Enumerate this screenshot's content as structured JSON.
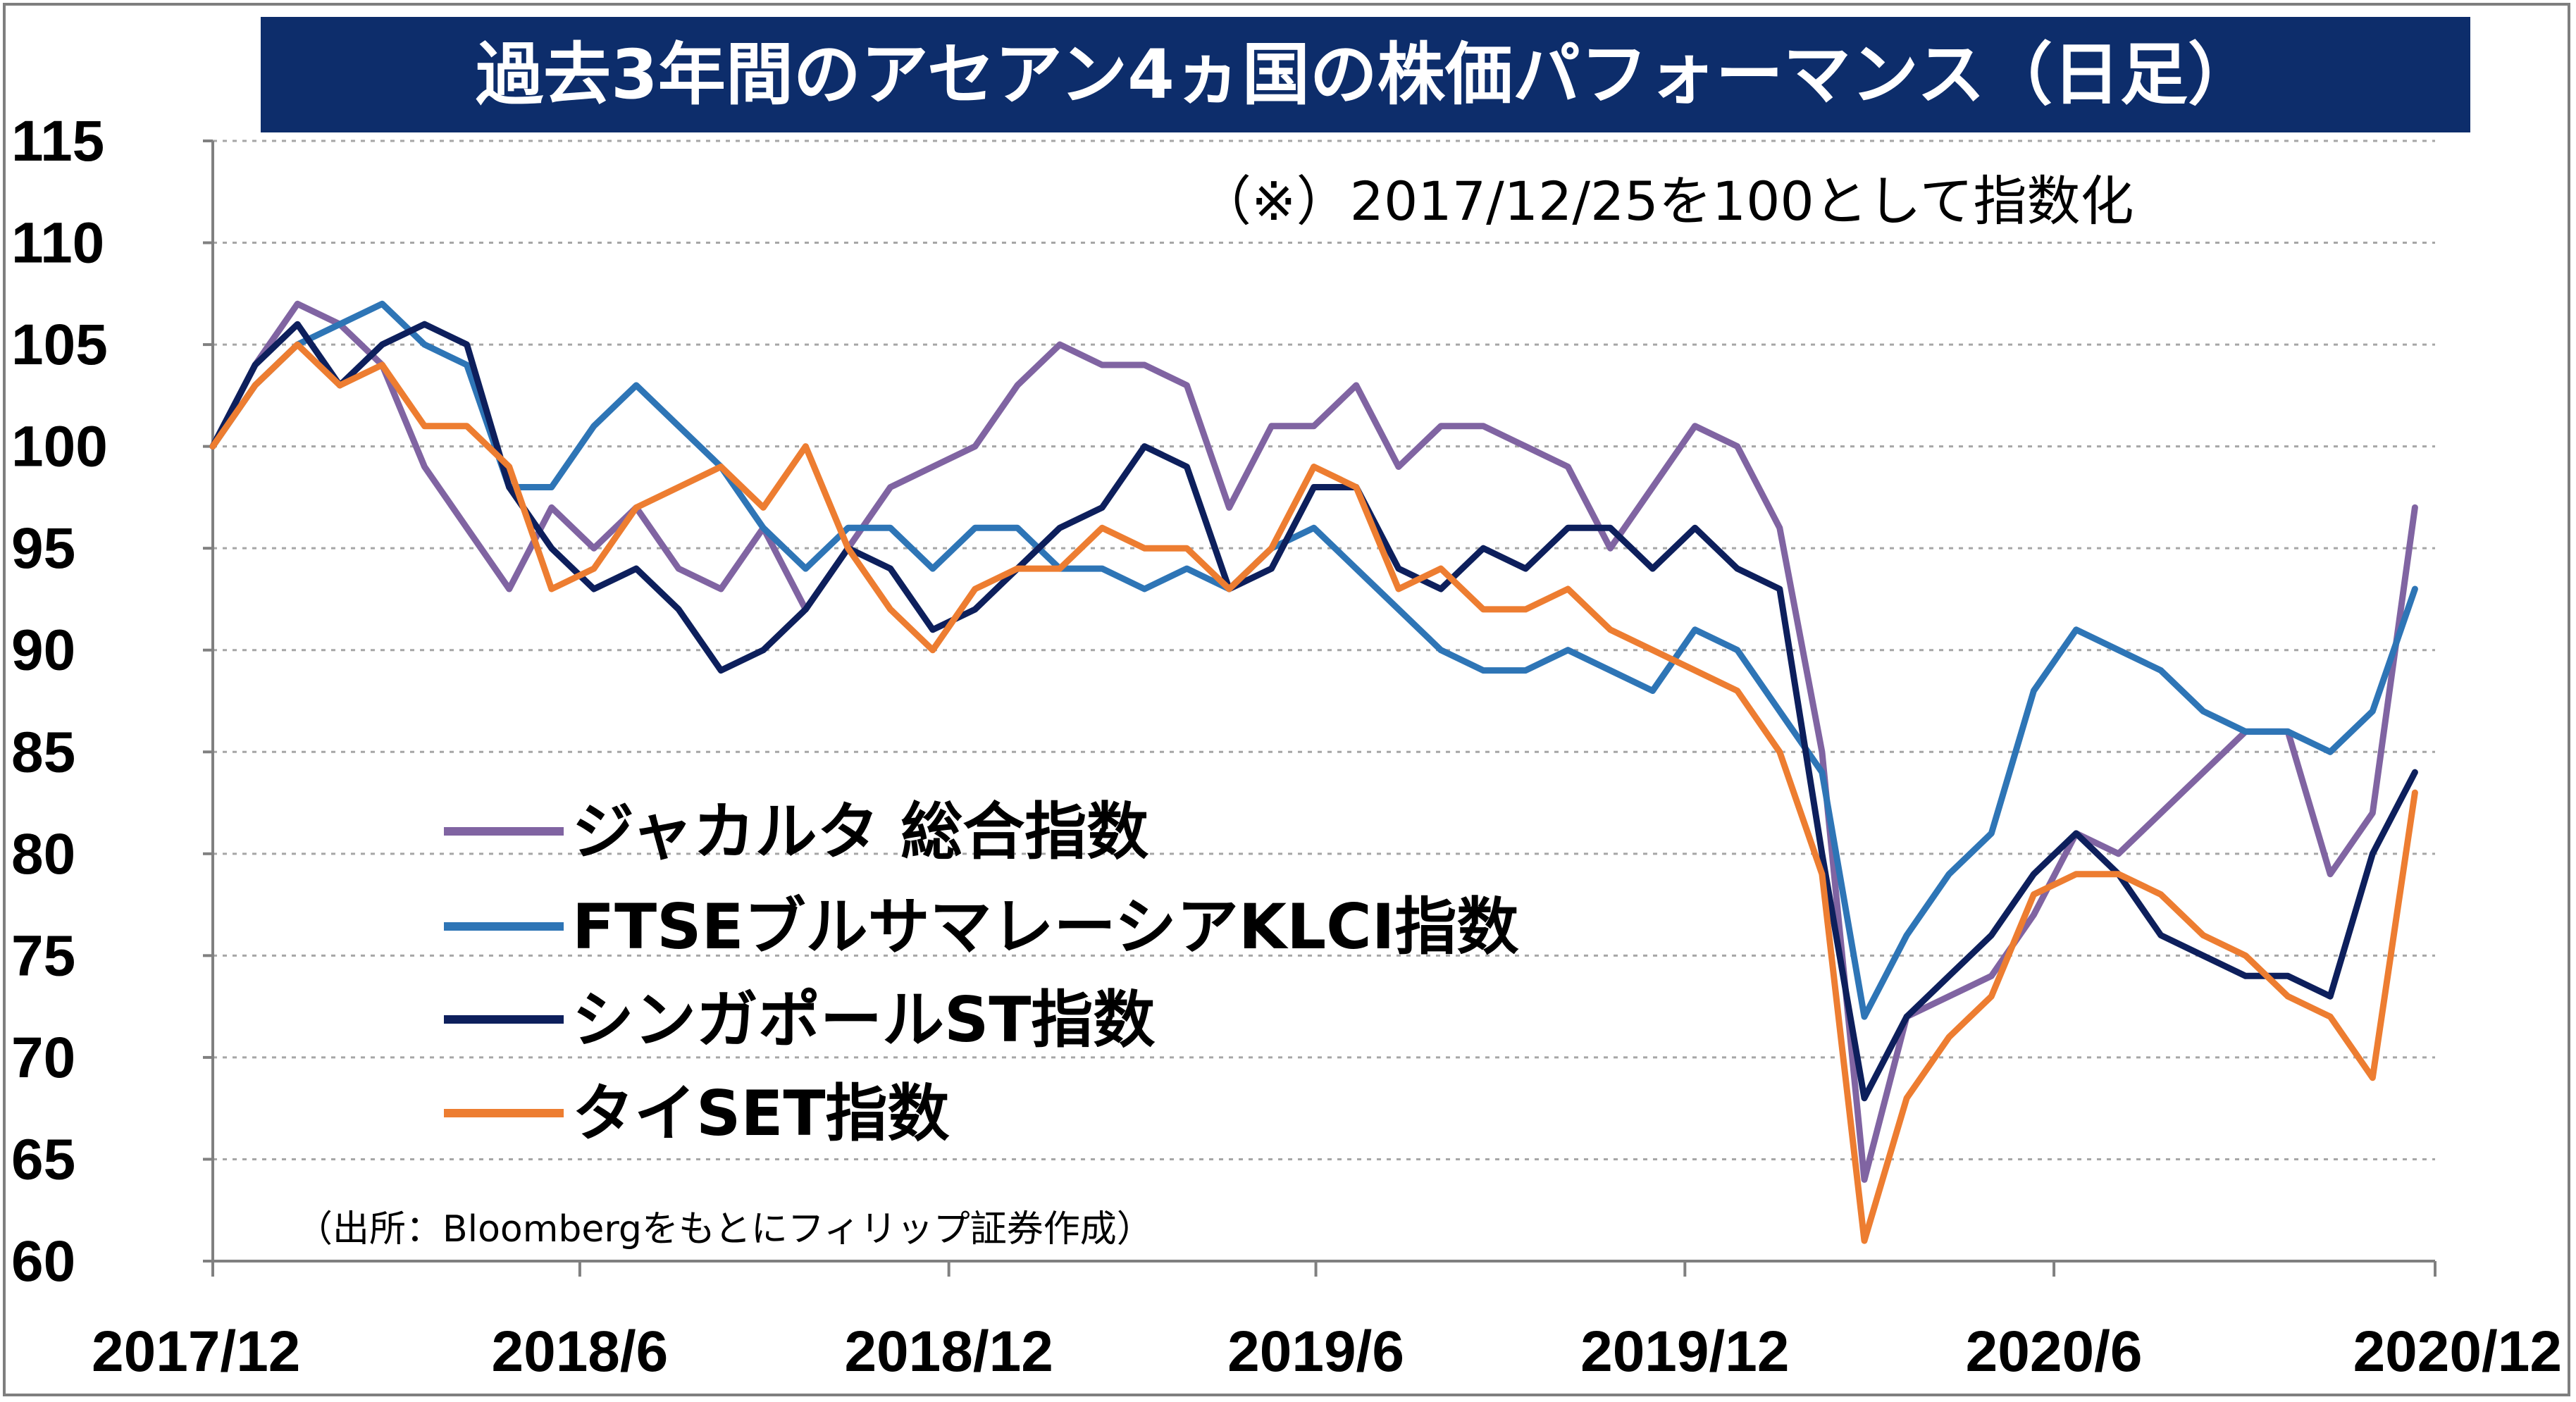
{
  "title": "過去3年間のアセアン4ヵ国の株価パフォーマンス（日足）",
  "note": "（※）2017/12/25を100として指数化",
  "source": "（出所：Bloombergをもとにフィリップ証券作成）",
  "chart_data": {
    "type": "line",
    "title": "過去3年間のアセアン4ヵ国の株価パフォーマンス（日足）",
    "xlabel": "",
    "ylabel": "",
    "ylim": [
      60,
      115
    ],
    "yticks": [
      115,
      110,
      105,
      100,
      95,
      90,
      85,
      80,
      75,
      70,
      65,
      60
    ],
    "xticks": [
      "2017/12",
      "2018/6",
      "2018/12",
      "2019/6",
      "2019/12",
      "2020/6",
      "2020/12"
    ],
    "grid": "horizontal-dotted",
    "legend_position": "lower-left",
    "x": [
      "2017-12-25",
      "2018-01-15",
      "2018-02-05",
      "2018-02-26",
      "2018-03-19",
      "2018-04-09",
      "2018-04-30",
      "2018-05-21",
      "2018-06-11",
      "2018-07-02",
      "2018-07-23",
      "2018-08-13",
      "2018-09-03",
      "2018-09-24",
      "2018-10-15",
      "2018-11-05",
      "2018-11-26",
      "2018-12-17",
      "2019-01-07",
      "2019-01-28",
      "2019-02-18",
      "2019-03-11",
      "2019-04-01",
      "2019-04-22",
      "2019-05-13",
      "2019-06-03",
      "2019-06-24",
      "2019-07-15",
      "2019-08-05",
      "2019-08-26",
      "2019-09-16",
      "2019-10-07",
      "2019-10-28",
      "2019-11-18",
      "2019-12-09",
      "2019-12-30",
      "2020-01-20",
      "2020-02-10",
      "2020-03-02",
      "2020-03-23",
      "2020-04-13",
      "2020-05-04",
      "2020-05-25",
      "2020-06-15",
      "2020-07-06",
      "2020-07-27",
      "2020-08-17",
      "2020-09-07",
      "2020-09-28",
      "2020-10-19",
      "2020-11-09",
      "2020-11-30",
      "2020-12-21"
    ],
    "series": [
      {
        "name": "ジャカルタ 総合指数",
        "color": "#8064a2",
        "values": [
          100,
          104,
          107,
          106,
          104,
          99,
          96,
          93,
          97,
          95,
          97,
          94,
          93,
          96,
          92,
          95,
          98,
          99,
          100,
          103,
          105,
          104,
          104,
          103,
          97,
          101,
          101,
          103,
          99,
          101,
          101,
          100,
          99,
          95,
          98,
          101,
          100,
          96,
          85,
          64,
          72,
          73,
          74,
          77,
          81,
          80,
          82,
          84,
          86,
          86,
          79,
          82,
          97
        ]
      },
      {
        "name": "FTSEブルサマレーシアKLCI指数",
        "color": "#2e75b6",
        "values": [
          100,
          103,
          105,
          106,
          107,
          105,
          104,
          98,
          98,
          101,
          103,
          101,
          99,
          96,
          94,
          96,
          96,
          94,
          96,
          96,
          94,
          94,
          93,
          94,
          93,
          95,
          96,
          94,
          92,
          90,
          89,
          89,
          90,
          89,
          88,
          91,
          90,
          87,
          84,
          72,
          76,
          79,
          81,
          88,
          91,
          90,
          89,
          87,
          86,
          86,
          85,
          87,
          93
        ]
      },
      {
        "name": "シンガポールST指数",
        "color": "#0d1f5c",
        "values": [
          100,
          104,
          106,
          103,
          105,
          106,
          105,
          98,
          95,
          93,
          94,
          92,
          89,
          90,
          92,
          95,
          94,
          91,
          92,
          94,
          96,
          97,
          100,
          99,
          93,
          94,
          98,
          98,
          94,
          93,
          95,
          94,
          96,
          96,
          94,
          96,
          94,
          93,
          80,
          68,
          72,
          74,
          76,
          79,
          81,
          79,
          76,
          75,
          74,
          74,
          73,
          80,
          84
        ]
      },
      {
        "name": "タイSET指数",
        "color": "#ed7d31",
        "values": [
          100,
          103,
          105,
          103,
          104,
          101,
          101,
          99,
          93,
          94,
          97,
          98,
          99,
          97,
          100,
          95,
          92,
          90,
          93,
          94,
          94,
          96,
          95,
          95,
          93,
          95,
          99,
          98,
          93,
          94,
          92,
          92,
          93,
          91,
          90,
          89,
          88,
          85,
          79,
          61,
          68,
          71,
          73,
          78,
          79,
          79,
          78,
          76,
          75,
          73,
          72,
          69,
          83
        ]
      }
    ]
  }
}
